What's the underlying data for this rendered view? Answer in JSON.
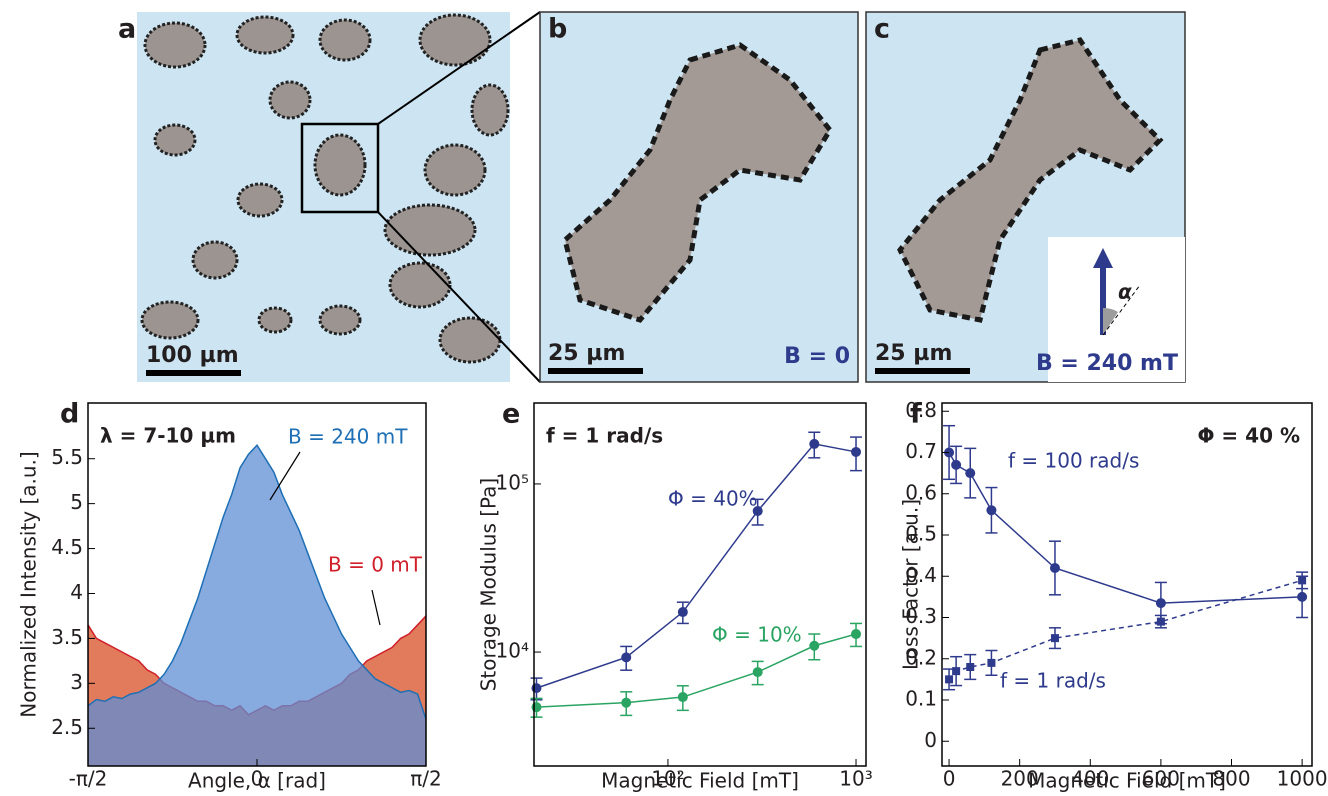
{
  "images": [
    {
      "label": "a",
      "scale_bar": "100 µm"
    },
    {
      "label": "b",
      "scale_bar": "25 µm",
      "caption": "B = 0"
    },
    {
      "label": "c",
      "scale_bar": "25 µm",
      "caption": "B = 240 mT",
      "angle_label": "α"
    }
  ],
  "chart_data": [
    {
      "type": "area",
      "panel": "d",
      "annotation": "λ = 7-10 µm",
      "x_label": "Angle, α [rad]",
      "y_label": "Normalized Intensity [a.u.]",
      "x": [
        -1.5708,
        -1.4923,
        -1.4137,
        -1.3352,
        -1.2566,
        -1.1781,
        -1.0996,
        -1.021,
        -0.9425,
        -0.8639,
        -0.7854,
        -0.7069,
        -0.6283,
        -0.5498,
        -0.4712,
        -0.3927,
        -0.3142,
        -0.2356,
        -0.1571,
        -0.0785,
        0,
        0.0785,
        0.1571,
        0.2356,
        0.3142,
        0.3927,
        0.4712,
        0.5498,
        0.6283,
        0.7069,
        0.7854,
        0.8639,
        0.9425,
        1.021,
        1.0996,
        1.1781,
        1.2566,
        1.3352,
        1.4137,
        1.4923,
        1.5708
      ],
      "series": [
        {
          "name": "B = 0 mT",
          "color": "#d0202a",
          "fill": "#e27a5c",
          "values": [
            3.65,
            3.5,
            3.45,
            3.4,
            3.35,
            3.3,
            3.25,
            3.15,
            3.1,
            3.0,
            2.95,
            2.9,
            2.85,
            2.8,
            2.8,
            2.75,
            2.75,
            2.7,
            2.75,
            2.65,
            2.7,
            2.75,
            2.7,
            2.75,
            2.75,
            2.8,
            2.8,
            2.85,
            2.9,
            2.95,
            3.0,
            3.1,
            3.15,
            3.25,
            3.3,
            3.35,
            3.4,
            3.5,
            3.55,
            3.65,
            3.75
          ]
        },
        {
          "name": "B = 240 mT",
          "color": "#1f6fb5",
          "fill": "#5f8fd4",
          "values": [
            2.75,
            2.82,
            2.8,
            2.85,
            2.83,
            2.88,
            2.9,
            2.95,
            3.0,
            3.1,
            3.25,
            3.45,
            3.7,
            3.95,
            4.25,
            4.55,
            4.85,
            5.1,
            5.4,
            5.55,
            5.65,
            5.5,
            5.35,
            5.1,
            4.9,
            4.7,
            4.45,
            4.2,
            3.95,
            3.75,
            3.55,
            3.4,
            3.25,
            3.15,
            3.05,
            3.0,
            2.95,
            2.9,
            2.92,
            2.88,
            2.6
          ]
        }
      ],
      "xlim": [
        -1.5708,
        1.5708
      ],
      "xticks": [
        {
          "value": -1.5708,
          "label": "-π/2"
        },
        0,
        {
          "value": 1.5708,
          "label": "π/2"
        }
      ],
      "ylim": [
        2.08,
        6.12
      ],
      "yticks": [
        2.5,
        3,
        3.5,
        4,
        4.5,
        5,
        5.5
      ]
    },
    {
      "type": "line",
      "panel": "e",
      "annotation": "f = 1 rad/s",
      "x_label": "Magnetic Field [mT]",
      "y_label": "Storage Modulus [Pa]",
      "xscale": "log",
      "yscale": "log",
      "x": [
        20,
        60,
        120,
        300,
        600,
        1000
      ],
      "series": [
        {
          "name": "Φ = 40%",
          "color": "#2e3a8c",
          "marker": "circle",
          "values": [
            6100,
            9300,
            17300,
            69000,
            173000,
            155000
          ],
          "errors": [
            900,
            1500,
            2500,
            12000,
            30000,
            35000
          ]
        },
        {
          "name": "Φ = 10%",
          "color": "#2aa462",
          "marker": "circle",
          "values": [
            4700,
            5000,
            5400,
            7600,
            10900,
            12800
          ],
          "errors": [
            600,
            800,
            900,
            1200,
            1900,
            2000
          ]
        }
      ],
      "xlim": [
        19.4,
        1130
      ],
      "xticks": [
        {
          "value": 100,
          "label": "10²"
        },
        {
          "value": 1000,
          "label": "10³"
        }
      ],
      "ylim": [
        2100,
        303000
      ],
      "yticks": [
        {
          "value": 10000,
          "label": "10⁴"
        },
        {
          "value": 100000,
          "label": "10⁵"
        }
      ]
    },
    {
      "type": "line",
      "panel": "f",
      "annotation": "Φ = 40 %",
      "x_label": "Magnetic Field [mT]",
      "y_label": "Loss Factor [a.u.]",
      "x": [
        0,
        20,
        60,
        120,
        300,
        600,
        1000
      ],
      "series": [
        {
          "name": "f = 100 rad/s",
          "color": "#2e3a8c",
          "marker": "circle",
          "values": [
            0.7,
            0.67,
            0.65,
            0.56,
            0.42,
            0.335,
            0.35
          ],
          "errors": [
            0.065,
            0.045,
            0.06,
            0.055,
            0.065,
            0.05,
            0.05
          ]
        },
        {
          "name": "f = 1 rad/s",
          "color": "#2e3a8c",
          "marker": "square",
          "style": "dashed",
          "values": [
            0.15,
            0.17,
            0.18,
            0.19,
            0.25,
            0.29,
            0.39
          ],
          "errors": [
            0.025,
            0.035,
            0.03,
            0.03,
            0.025,
            0.015,
            0.02
          ]
        }
      ],
      "xlim": [
        -20,
        1028
      ],
      "xticks": [
        0,
        200,
        400,
        600,
        800,
        1000
      ],
      "ylim": [
        -0.06,
        0.82
      ],
      "yticks": [
        0,
        0.1,
        0.2,
        0.3,
        0.4,
        0.5,
        0.6,
        0.7,
        0.8
      ]
    }
  ]
}
